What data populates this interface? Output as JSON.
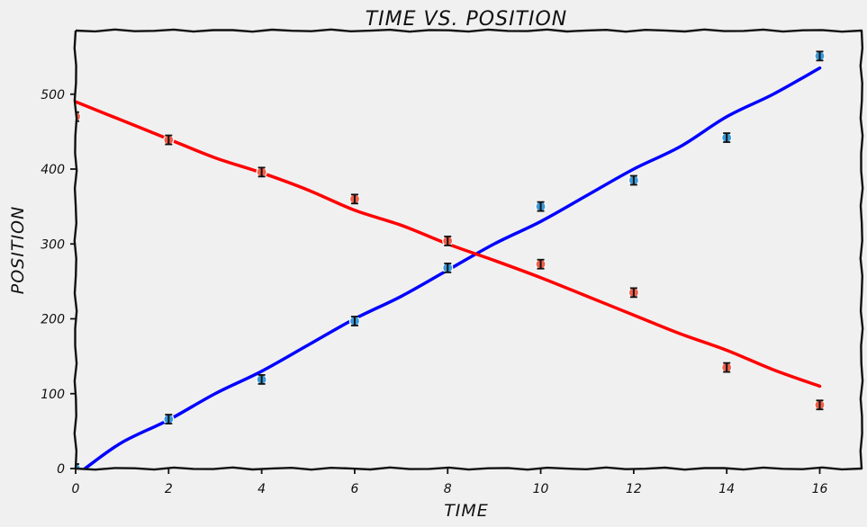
{
  "chart_data": {
    "type": "line",
    "title": "TIME VS. POSITION",
    "xlabel": "TIME",
    "ylabel": "POSITION",
    "xlim": [
      0,
      16.9
    ],
    "ylim": [
      0,
      585
    ],
    "xticks": [
      0,
      2,
      4,
      6,
      8,
      10,
      12,
      14,
      16
    ],
    "yticks": [
      0,
      100,
      200,
      300,
      400,
      500
    ],
    "grid": false,
    "legend": "none",
    "background": "#f0f0f0",
    "series": [
      {
        "kind": "line",
        "color": "#0000ff",
        "x": [
          0.2,
          1,
          2,
          3,
          4,
          5,
          6,
          7,
          8,
          9,
          10,
          11,
          12,
          13,
          14,
          15,
          16
        ],
        "y": [
          0,
          35,
          65,
          100,
          130,
          165,
          200,
          230,
          265,
          300,
          330,
          365,
          400,
          430,
          470,
          500,
          535
        ]
      },
      {
        "kind": "line",
        "color": "#ff0000",
        "x": [
          0,
          1,
          2,
          3,
          4,
          5,
          6,
          7,
          8,
          9,
          10,
          11,
          12,
          13,
          14,
          15,
          16
        ],
        "y": [
          490,
          465,
          440,
          415,
          395,
          372,
          345,
          325,
          300,
          278,
          255,
          230,
          205,
          180,
          158,
          132,
          110
        ]
      },
      {
        "kind": "points",
        "color": "#3a9ad9",
        "x": [
          0,
          2,
          4,
          6,
          8,
          10,
          12,
          14,
          16
        ],
        "y": [
          0,
          66,
          119,
          197,
          268,
          350,
          385,
          442,
          551
        ],
        "err": [
          6,
          6,
          6,
          6,
          6,
          6,
          6,
          6,
          6
        ]
      },
      {
        "kind": "points",
        "color": "#f0604a",
        "x": [
          0,
          2,
          4,
          6,
          8,
          10,
          12,
          14,
          16
        ],
        "y": [
          470,
          439,
          396,
          360,
          304,
          273,
          235,
          135,
          85
        ],
        "err": [
          6,
          6,
          6,
          6,
          6,
          6,
          6,
          6,
          6
        ]
      }
    ]
  }
}
